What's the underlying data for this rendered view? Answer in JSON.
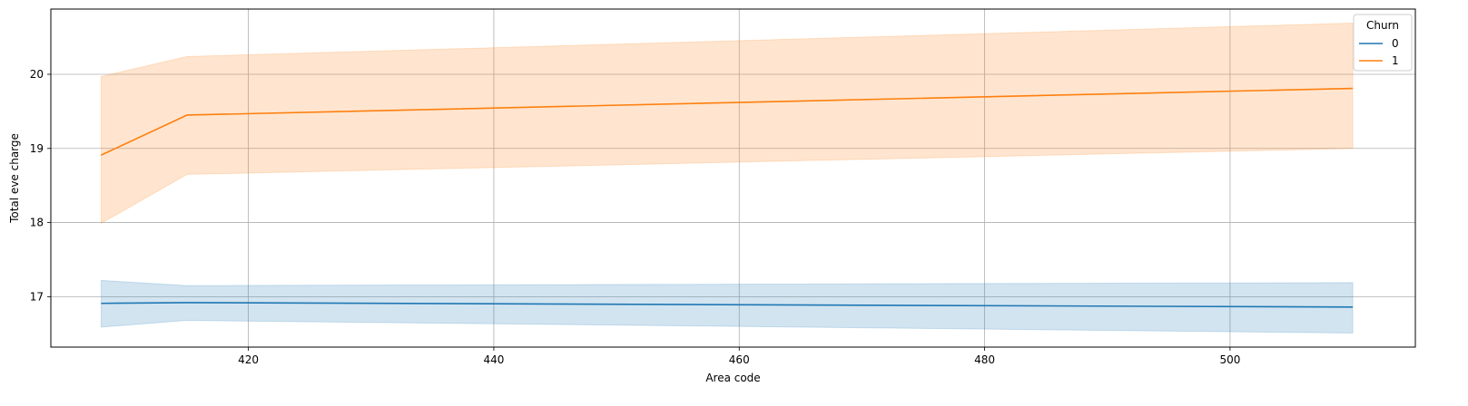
{
  "chart_data": {
    "type": "line",
    "xlabel": "Area code",
    "ylabel": "Total eve charge",
    "xlim": [
      403.9,
      515.1
    ],
    "ylim": [
      16.32,
      20.88
    ],
    "xticks": [
      420,
      440,
      460,
      480,
      500
    ],
    "yticks": [
      17,
      18,
      19,
      20
    ],
    "grid": true,
    "legend": {
      "title": "Churn",
      "placement": "top-right"
    },
    "x": [
      408,
      415,
      510
    ],
    "series": [
      {
        "name": "0",
        "color": "#1f77b4",
        "values": [
          16.91,
          16.92,
          16.86
        ],
        "ci_low": [
          16.59,
          16.68,
          16.51
        ],
        "ci_high": [
          17.22,
          17.15,
          17.19
        ]
      },
      {
        "name": "1",
        "color": "#ff7f0e",
        "values": [
          18.91,
          19.45,
          19.81
        ],
        "ci_low": [
          17.99,
          18.65,
          19.0
        ],
        "ci_high": [
          19.97,
          20.24,
          20.69
        ]
      }
    ]
  }
}
